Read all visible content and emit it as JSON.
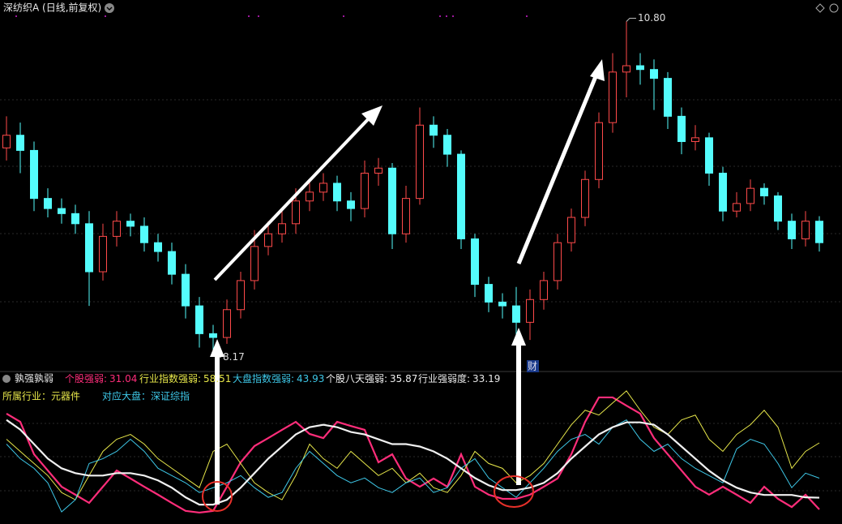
{
  "chart_data": [
    {
      "type": "candlestick",
      "title": "深纺织A (日线,前复权)",
      "open": [
        9.8,
        9.9,
        9.78,
        9.4,
        9.32,
        9.28,
        9.2,
        8.82,
        9.1,
        9.22,
        9.18,
        9.05,
        8.98,
        8.8,
        8.55,
        8.33,
        8.3,
        8.52,
        8.75,
        9.02,
        9.12,
        9.2,
        9.38,
        9.45,
        9.52,
        9.38,
        9.32,
        9.6,
        9.64,
        9.12,
        9.4,
        9.98,
        9.9,
        9.75,
        9.08,
        8.72,
        8.58,
        8.55,
        8.42,
        8.6,
        8.75,
        9.05,
        9.25,
        9.55,
        10.0,
        10.4,
        10.45,
        10.42,
        10.35,
        10.05,
        9.85,
        9.88,
        9.6,
        9.3,
        9.36,
        9.48,
        9.42,
        9.22,
        9.08,
        9.22
      ],
      "high": [
        10.05,
        10.0,
        9.85,
        9.48,
        9.4,
        9.35,
        9.3,
        9.2,
        9.3,
        9.28,
        9.25,
        9.12,
        9.05,
        8.88,
        8.62,
        8.4,
        8.6,
        8.82,
        9.15,
        9.22,
        9.3,
        9.48,
        9.55,
        9.6,
        9.58,
        9.45,
        9.7,
        9.72,
        9.68,
        9.5,
        10.12,
        10.05,
        9.95,
        9.78,
        9.12,
        8.78,
        8.65,
        8.7,
        8.68,
        8.82,
        9.12,
        9.32,
        9.62,
        10.08,
        10.55,
        10.8,
        10.55,
        10.5,
        10.4,
        10.12,
        9.98,
        9.92,
        9.65,
        9.45,
        9.55,
        9.52,
        9.45,
        9.28,
        9.3,
        9.26
      ],
      "low": [
        9.7,
        9.6,
        9.3,
        9.25,
        9.2,
        9.12,
        8.55,
        8.75,
        9.02,
        9.1,
        8.98,
        8.9,
        8.72,
        8.45,
        8.22,
        8.17,
        8.25,
        8.45,
        8.68,
        8.95,
        9.05,
        9.12,
        9.3,
        9.38,
        9.3,
        9.22,
        9.25,
        9.5,
        9.0,
        9.05,
        9.35,
        9.8,
        9.65,
        9.0,
        8.62,
        8.5,
        8.45,
        8.3,
        8.28,
        8.52,
        8.68,
        8.98,
        9.18,
        9.48,
        9.92,
        10.2,
        10.3,
        10.1,
        9.95,
        9.75,
        9.78,
        9.5,
        9.22,
        9.25,
        9.3,
        9.35,
        9.15,
        9.0,
        9.02,
        8.98
      ],
      "close": [
        9.9,
        9.78,
        9.4,
        9.32,
        9.28,
        9.2,
        8.82,
        9.1,
        9.22,
        9.18,
        9.05,
        8.98,
        8.8,
        8.55,
        8.33,
        8.3,
        8.52,
        8.75,
        9.02,
        9.12,
        9.2,
        9.38,
        9.45,
        9.52,
        9.38,
        9.32,
        9.6,
        9.64,
        9.12,
        9.4,
        9.98,
        9.9,
        9.75,
        9.08,
        8.72,
        8.58,
        8.55,
        8.42,
        8.6,
        8.75,
        9.05,
        9.25,
        9.55,
        10.0,
        10.4,
        10.45,
        10.42,
        10.35,
        10.05,
        9.85,
        9.88,
        9.6,
        9.3,
        9.36,
        9.48,
        9.42,
        9.22,
        9.08,
        9.22,
        9.05
      ],
      "up_color": "#ff4a4a",
      "down_color": "#54fcfc",
      "ylim": [
        8.05,
        10.97
      ],
      "high_label": "10.80",
      "low_label": "8.17",
      "badge": "财"
    },
    {
      "type": "line",
      "title": "孰强孰弱",
      "series": [
        {
          "name": "个股强弱:",
          "color": "#ff2d7a",
          "values": [
            70.6,
            67.2,
            53.8,
            47.1,
            40.4,
            37.1,
            33.7,
            40.4,
            47.1,
            43.8,
            40.4,
            37.1,
            33.7,
            30.4,
            29.7,
            30.4,
            40.4,
            50.5,
            57.2,
            60.5,
            63.9,
            67.2,
            62.2,
            60.5,
            67.2,
            65.5,
            63.9,
            50.5,
            53.8,
            43.8,
            40.4,
            43.8,
            40.4,
            53.8,
            40.4,
            37.1,
            35.4,
            35.4,
            37.1,
            40.4,
            43.8,
            53.8,
            67.2,
            77.3,
            77.3,
            73.9,
            70.6,
            60.5,
            53.8,
            47.1,
            40.4,
            37.1,
            40.4,
            37.1,
            33.7,
            40.4,
            35.4,
            32.0,
            37.1,
            31.04
          ]
        },
        {
          "name": "行业指数强弱:",
          "color": "#e6e64a",
          "values": [
            60,
            55,
            50,
            45,
            38,
            35,
            45,
            55,
            60,
            62,
            58,
            52,
            48,
            44,
            40,
            55,
            58,
            50,
            42,
            38,
            35,
            45,
            58,
            52,
            48,
            55,
            50,
            45,
            48,
            42,
            46,
            40,
            38,
            45,
            55,
            50,
            48,
            42,
            45,
            50,
            58,
            66,
            72,
            70,
            75,
            80,
            72,
            65,
            62,
            68,
            70,
            60,
            55,
            62,
            66,
            72,
            65,
            48,
            55,
            58.51
          ]
        },
        {
          "name": "大盘指数强弱:",
          "color": "#3ec8e8",
          "values": [
            58,
            52,
            48,
            42,
            30,
            35,
            50,
            52,
            55,
            60,
            55,
            48,
            45,
            42,
            38,
            40,
            42,
            45,
            40,
            36,
            38,
            48,
            55,
            50,
            45,
            42,
            44,
            40,
            38,
            42,
            44,
            38,
            40,
            48,
            52,
            44,
            40,
            36,
            42,
            48,
            55,
            60,
            62,
            58,
            65,
            68,
            60,
            55,
            58,
            52,
            48,
            45,
            42,
            56,
            60,
            58,
            50,
            40,
            46,
            43.93
          ]
        },
        {
          "name": "个股八天强弱:",
          "color": "#f0f0f0",
          "values": [
            68,
            64,
            58,
            52,
            48,
            46,
            45,
            45,
            46,
            46,
            45,
            43,
            40,
            36,
            33,
            33,
            35,
            40,
            46,
            52,
            57,
            62,
            65,
            66,
            65,
            63,
            62,
            60,
            58,
            58,
            57,
            55,
            52,
            48,
            44,
            41,
            39,
            39,
            40,
            42,
            46,
            52,
            57,
            62,
            65,
            67,
            67,
            66,
            62,
            57,
            52,
            47,
            43,
            40,
            38,
            37,
            37,
            37,
            36,
            35.87
          ]
        }
      ],
      "extra": {
        "name": "行业强弱度:",
        "value": 33.19
      },
      "industry": "所属行业：元器件",
      "market": "对应大盘：深证综指",
      "ylim": [
        27,
        87
      ]
    }
  ]
}
